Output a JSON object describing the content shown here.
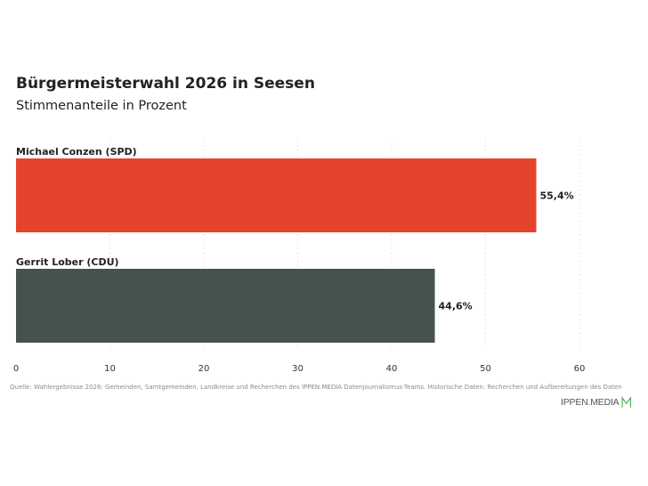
{
  "chart_data": {
    "type": "bar",
    "orientation": "horizontal",
    "title": "Bürgermeisterwahl 2026 in Seesen",
    "subtitle": "Stimmenanteile in Prozent",
    "categories": [
      "Michael Conzen (SPD)",
      "Gerrit Lober (CDU)"
    ],
    "values": [
      55.4,
      44.6
    ],
    "value_labels": [
      "55,4%",
      "44,6%"
    ],
    "colors": [
      "#e5432b",
      "#465250"
    ],
    "xlim": [
      0,
      60
    ],
    "xticks": [
      "0",
      "10",
      "20",
      "30",
      "40",
      "50",
      "60"
    ],
    "grid": true
  },
  "footer": {
    "source": "Quelle: Wahlergebnisse 2026: Gemeinden, Samtgemeinden, Landkreise und Recherchen des IPPEN.MEDIA Datenjournalismus-Teams. Historische Daten: Recherchen und Aufbereitungen des Daten",
    "logo_text": "IPPEN.MEDIA",
    "logo_color": "#4caf50"
  }
}
